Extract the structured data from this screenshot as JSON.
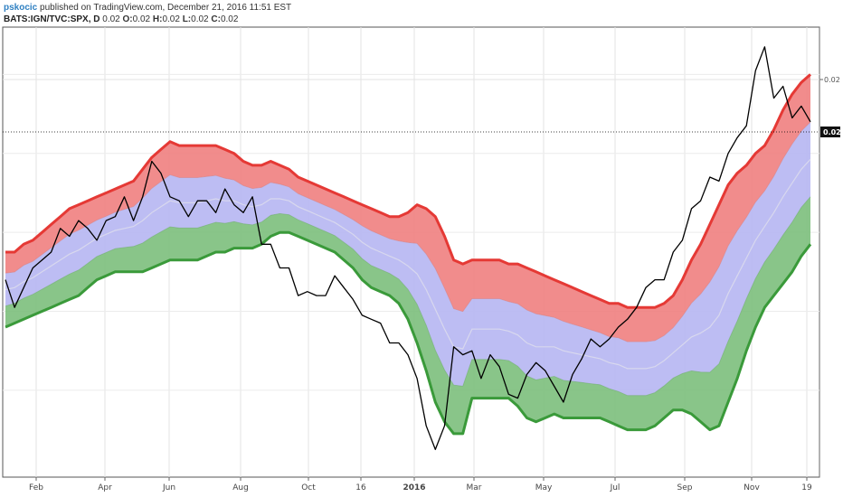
{
  "header": {
    "author": "pskocic",
    "published_text": "published on TradingView.com, December 21, 2016 11:51 EST",
    "symbol": "BATS:IGN/TVC:SPX, D",
    "value": "0.02",
    "o_label": "O:",
    "o_value": "0.02",
    "h_label": "H:",
    "h_value": "0.02",
    "l_label": "L:",
    "l_value": "0.02",
    "c_label": "C:",
    "c_value": "0.02"
  },
  "colors": {
    "price_line": "#000000",
    "upper_band": "#e53935",
    "upper_fill": "#f08080",
    "middle_fill": "#b9b9f2",
    "lower_band": "#3a9a3a",
    "lower_fill": "#7cbf7c",
    "mid_line": "#d8d8ee"
  },
  "chart_data": {
    "type": "line",
    "x_ticks": [
      "Feb",
      "Apr",
      "Jun",
      "Aug",
      "Oct",
      "16",
      "2016",
      "Mar",
      "May",
      "Jul",
      "Sep",
      "Nov",
      "19"
    ],
    "y_ticks": [
      "0.02"
    ],
    "current_price_label": "0.02",
    "series": [
      {
        "role": "price",
        "values": [
          0.0188,
          0.0181,
          0.0186,
          0.0191,
          0.0193,
          0.0195,
          0.0201,
          0.0199,
          0.0203,
          0.0201,
          0.0198,
          0.0203,
          0.0204,
          0.0209,
          0.0203,
          0.0209,
          0.0218,
          0.0215,
          0.0209,
          0.0208,
          0.0204,
          0.0208,
          0.0208,
          0.0205,
          0.0211,
          0.0207,
          0.0205,
          0.0209,
          0.0197,
          0.0197,
          0.0191,
          0.0191,
          0.0184,
          0.0185,
          0.0184,
          0.0184,
          0.0189,
          0.0186,
          0.0183,
          0.0179,
          0.0178,
          0.0177,
          0.0172,
          0.0172,
          0.0169,
          0.0163,
          0.0151,
          0.0145,
          0.0151,
          0.0171,
          0.0169,
          0.017,
          0.0163,
          0.0169,
          0.0166,
          0.0159,
          0.0158,
          0.0164,
          0.0167,
          0.0165,
          0.0161,
          0.0157,
          0.0164,
          0.0168,
          0.0173,
          0.0171,
          0.0173,
          0.0176,
          0.0178,
          0.0181,
          0.0186,
          0.0188,
          0.0188,
          0.0195,
          0.0198,
          0.0206,
          0.0208,
          0.0214,
          0.0213,
          0.022,
          0.0224,
          0.0227,
          0.0241,
          0.0247,
          0.0234,
          0.0237,
          0.0229,
          0.0232,
          0.0228
        ]
      },
      {
        "role": "upper_band",
        "values": [
          0.0195,
          0.0195,
          0.0197,
          0.0198,
          0.02,
          0.0202,
          0.0204,
          0.0206,
          0.0207,
          0.0208,
          0.0209,
          0.021,
          0.0211,
          0.0212,
          0.0213,
          0.0216,
          0.0219,
          0.0221,
          0.0223,
          0.0222,
          0.0222,
          0.0222,
          0.0222,
          0.0222,
          0.0221,
          0.022,
          0.0218,
          0.0217,
          0.0217,
          0.0218,
          0.0217,
          0.0216,
          0.0214,
          0.0213,
          0.0212,
          0.0211,
          0.021,
          0.0209,
          0.0208,
          0.0207,
          0.0206,
          0.0205,
          0.0204,
          0.0204,
          0.0205,
          0.0207,
          0.0206,
          0.0204,
          0.0199,
          0.0193,
          0.0192,
          0.0193,
          0.0193,
          0.0193,
          0.0193,
          0.0192,
          0.0192,
          0.0191,
          0.019,
          0.0189,
          0.0188,
          0.0187,
          0.0186,
          0.0185,
          0.0184,
          0.0183,
          0.0182,
          0.0182,
          0.0181,
          0.0181,
          0.0181,
          0.0181,
          0.0182,
          0.0184,
          0.0188,
          0.0193,
          0.0197,
          0.0202,
          0.0207,
          0.0212,
          0.0215,
          0.0217,
          0.022,
          0.0222,
          0.0226,
          0.0231,
          0.0235,
          0.0238,
          0.024
        ]
      },
      {
        "role": "lower_band",
        "values": [
          0.0176,
          0.0177,
          0.0178,
          0.0179,
          0.018,
          0.0181,
          0.0182,
          0.0183,
          0.0184,
          0.0186,
          0.0188,
          0.0189,
          0.019,
          0.019,
          0.019,
          0.019,
          0.0191,
          0.0192,
          0.0193,
          0.0193,
          0.0193,
          0.0193,
          0.0194,
          0.0195,
          0.0195,
          0.0196,
          0.0196,
          0.0196,
          0.0197,
          0.0199,
          0.02,
          0.02,
          0.0199,
          0.0198,
          0.0197,
          0.0196,
          0.0195,
          0.0193,
          0.0191,
          0.0188,
          0.0186,
          0.0185,
          0.0184,
          0.0182,
          0.0178,
          0.0172,
          0.0165,
          0.0157,
          0.0152,
          0.0149,
          0.0149,
          0.0158,
          0.0158,
          0.0158,
          0.0158,
          0.0158,
          0.0156,
          0.0153,
          0.0152,
          0.0153,
          0.0154,
          0.0153,
          0.0153,
          0.0153,
          0.0153,
          0.0153,
          0.0152,
          0.0151,
          0.015,
          0.015,
          0.015,
          0.0151,
          0.0153,
          0.0155,
          0.0155,
          0.0154,
          0.0152,
          0.015,
          0.0151,
          0.0157,
          0.0163,
          0.017,
          0.0176,
          0.0181,
          0.0184,
          0.0187,
          0.019,
          0.0194,
          0.0197
        ]
      }
    ]
  }
}
